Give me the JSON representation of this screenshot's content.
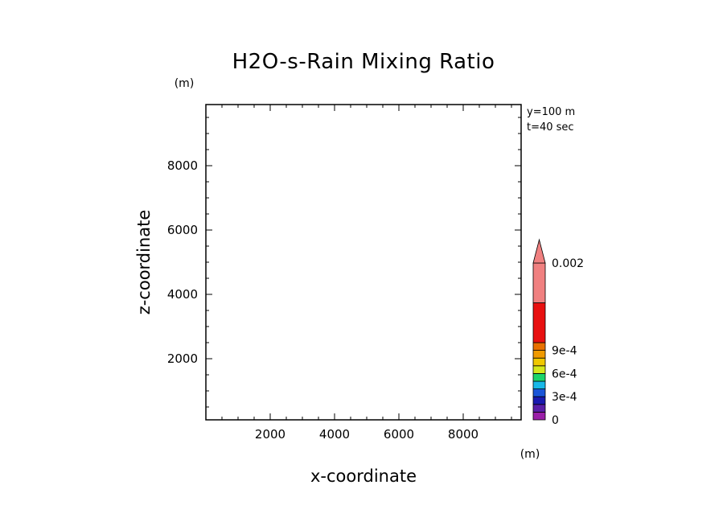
{
  "chart_data": {
    "type": "heatmap",
    "title": "H2O-s-Rain Mixing Ratio",
    "xlabel": "x-coordinate",
    "ylabel": "z-coordinate",
    "x_unit": "(m)",
    "y_unit": "(m)",
    "xlim": [
      0,
      9800
    ],
    "ylim": [
      100,
      9900
    ],
    "xticks": [
      2000,
      4000,
      6000,
      8000
    ],
    "yticks": [
      2000,
      4000,
      6000,
      8000
    ],
    "grid": false,
    "info_lines": [
      "y=100 m",
      "t=40 sec"
    ],
    "field": "empty",
    "colorbar": {
      "bins": [
        {
          "color": "#9b1fa8"
        },
        {
          "color": "#5a1fa8"
        },
        {
          "color": "#1a1ab0"
        },
        {
          "color": "#1a55d8"
        },
        {
          "color": "#18b8e8"
        },
        {
          "color": "#1cd46a"
        },
        {
          "color": "#d4e81c"
        },
        {
          "color": "#f0c800"
        },
        {
          "color": "#f09a00"
        },
        {
          "color": "#e87000"
        },
        {
          "color": "#e81010"
        },
        {
          "color": "#f08080"
        }
      ],
      "bin_values": [
        0,
        0.0001,
        0.0002,
        0.0003,
        0.0004,
        0.0005,
        0.0006,
        0.0007,
        0.0008,
        0.0009,
        0.001,
        0.0015,
        0.002
      ],
      "labels": [
        {
          "text": "0",
          "value": 0
        },
        {
          "text": "3e-4",
          "value": 0.0003
        },
        {
          "text": "6e-4",
          "value": 0.0006
        },
        {
          "text": "9e-4",
          "value": 0.0009
        },
        {
          "text": "0.002",
          "value": 0.002
        }
      ],
      "overflow_color": "#f08080"
    }
  }
}
